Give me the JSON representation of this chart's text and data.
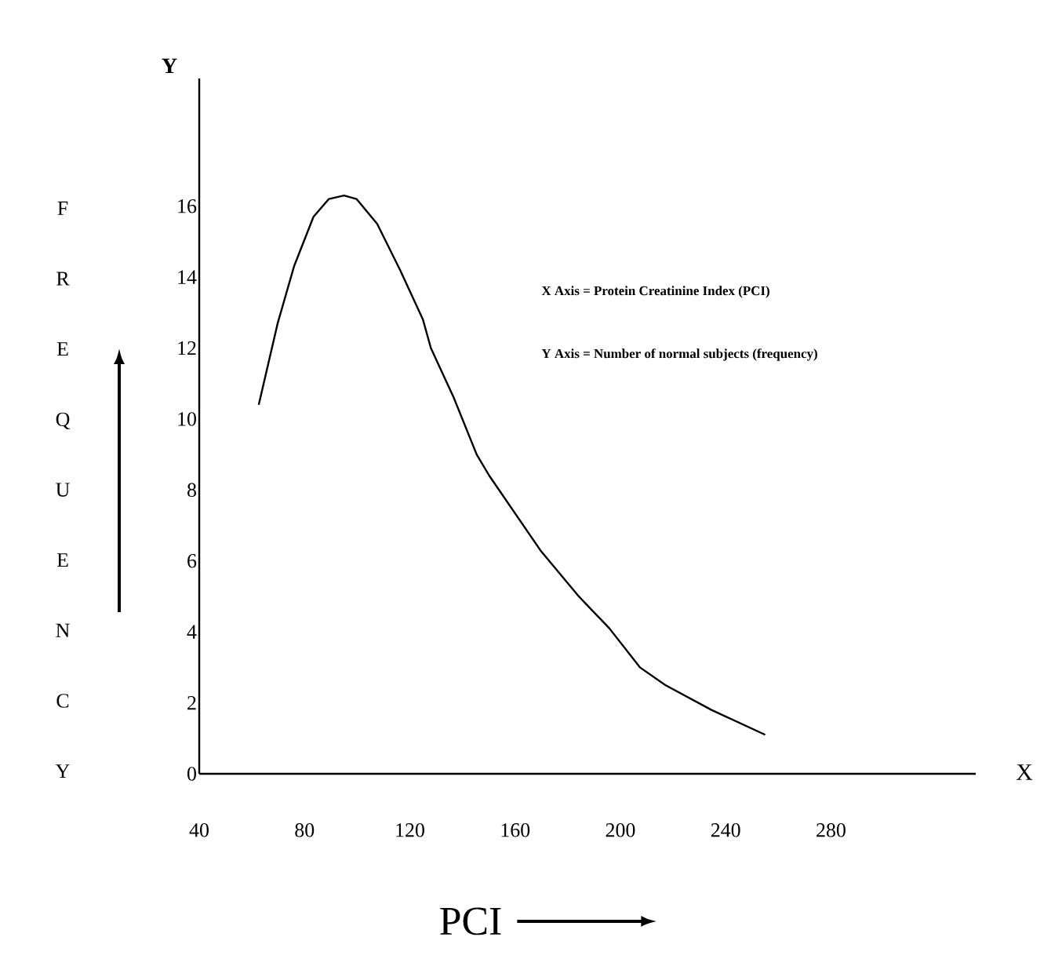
{
  "chart_data": {
    "type": "line",
    "xlabel": "PCI",
    "ylabel": "F R E Q U E N C Y",
    "annotations": [
      "Y",
      "X",
      "X Axis = Protein Creatinine Index (PCI)",
      "Y Axis = Number of normal subjects (frequency)"
    ],
    "x": [
      62.6,
      69.8,
      76,
      83.4,
      89.2,
      95,
      99.8,
      107.6,
      116.3,
      125,
      128,
      136.7,
      145.4,
      150.2,
      169.6,
      184.2,
      195.8,
      207.4,
      217.1,
      234.6,
      255
    ],
    "values": [
      10.4,
      12.7,
      14.3,
      15.7,
      16.2,
      16.3,
      16.2,
      15.5,
      14.2,
      12.8,
      12.0,
      10.6,
      9.0,
      8.4,
      6.3,
      5.0,
      4.1,
      3.0,
      2.5,
      1.8,
      1.1
    ],
    "color": "#000000",
    "xlim": [
      40,
      335
    ],
    "ylim": [
      0,
      19.6
    ],
    "xticks": [
      40,
      80,
      120,
      160,
      200,
      240,
      280
    ],
    "yticks": [
      0,
      2,
      4,
      6,
      8,
      10,
      12,
      14,
      16
    ],
    "grid": false
  }
}
